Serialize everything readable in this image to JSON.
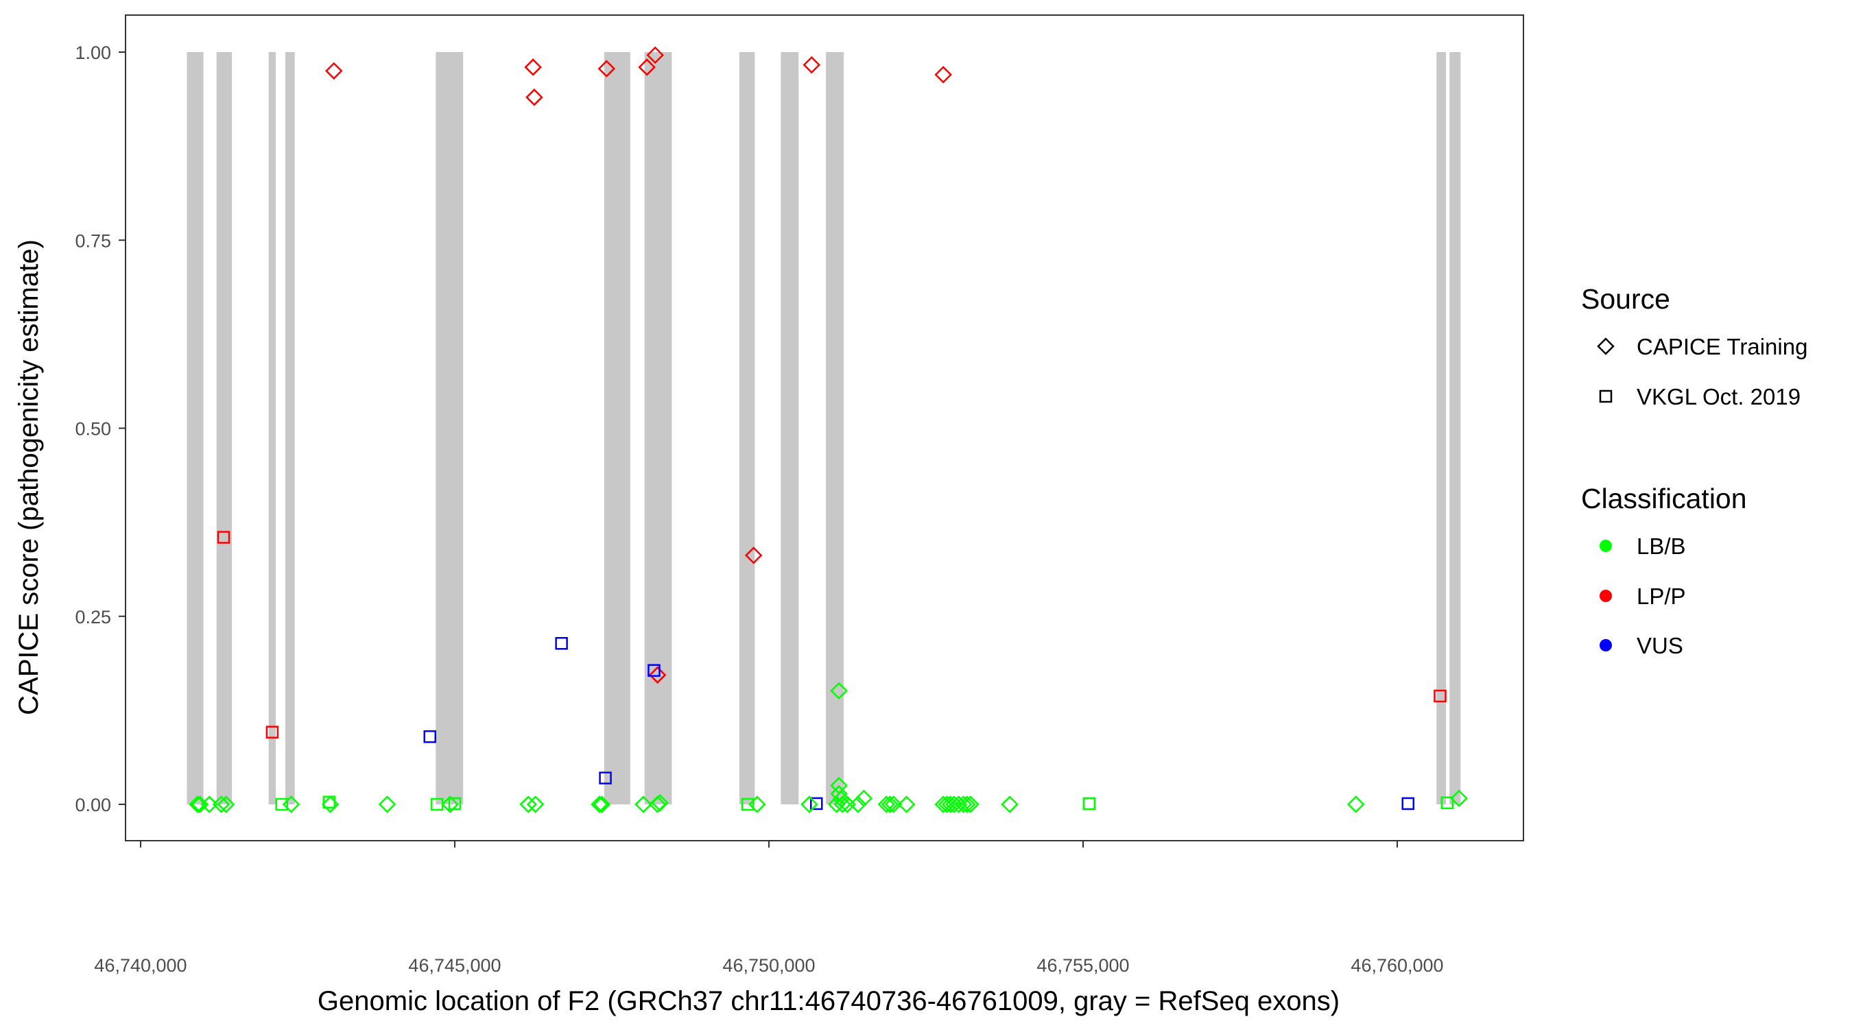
{
  "chart_data": {
    "type": "scatter",
    "xlabel": "Genomic location of F2 (GRCh37 chr11:46740736-46761009, gray = RefSeq exons)",
    "ylabel": "CAPICE score (pathogenicity estimate)",
    "xlim": [
      46739700,
      46762000
    ],
    "ylim": [
      -0.045,
      1.05
    ],
    "x_ticks": [
      46740000,
      46745000,
      46750000,
      46755000,
      46760000
    ],
    "x_tick_labels": [
      "46,740,000",
      "46,745,000",
      "46,750,000",
      "46,755,000",
      "46,760,000"
    ],
    "y_ticks": [
      0,
      0.25,
      0.5,
      0.75,
      1.0
    ],
    "y_tick_labels": [
      "0.00",
      "0.25",
      "0.50",
      "0.75",
      "1.00"
    ],
    "grid": false,
    "legend_placement": "right",
    "exon_color": "#c8c8c8",
    "exons": [
      [
        46740736,
        46741000
      ],
      [
        46741208,
        46741453
      ],
      [
        46742038,
        46742151
      ],
      [
        46742302,
        46742453
      ],
      [
        46744698,
        46745133
      ],
      [
        46747378,
        46747793
      ],
      [
        46748020,
        46748454
      ],
      [
        46749529,
        46749775
      ],
      [
        46750190,
        46750473
      ],
      [
        46750907,
        46751190
      ],
      [
        46760625,
        46760776
      ],
      [
        46760832,
        46761009
      ]
    ],
    "legend": {
      "source": {
        "title": "Source",
        "items": [
          {
            "label": "CAPICE Training",
            "shape": "diamond"
          },
          {
            "label": "VKGL Oct. 2019",
            "shape": "square"
          }
        ]
      },
      "classification": {
        "title": "Classification",
        "items": [
          {
            "label": "LB/B",
            "color": "#00ff00"
          },
          {
            "label": "LP/P",
            "color": "#ff0000"
          },
          {
            "label": "VUS",
            "color": "#0000ff"
          }
        ]
      }
    },
    "series": [
      {
        "source": "CAPICE Training",
        "classification": "LP/P",
        "points": [
          [
            46743076,
            0.975
          ],
          [
            46746246,
            0.98
          ],
          [
            46746265,
            0.94
          ],
          [
            46747416,
            0.978
          ],
          [
            46748058,
            0.98
          ],
          [
            46748190,
            0.996
          ],
          [
            46750680,
            0.983
          ],
          [
            46752775,
            0.97
          ],
          [
            46749756,
            0.331
          ],
          [
            46748227,
            0.172
          ]
        ]
      },
      {
        "source": "VKGL Oct. 2019",
        "classification": "LP/P",
        "points": [
          [
            46741321,
            0.355
          ],
          [
            46742095,
            0.096
          ],
          [
            46760682,
            0.144
          ]
        ]
      },
      {
        "source": "VKGL Oct. 2019",
        "classification": "VUS",
        "points": [
          [
            46744604,
            0.09
          ],
          [
            46746699,
            0.214
          ],
          [
            46748171,
            0.178
          ],
          [
            46747397,
            0.035
          ],
          [
            46750756,
            0.001
          ],
          [
            46760172,
            0.001
          ]
        ]
      },
      {
        "source": "CAPICE Training",
        "classification": "LB/B",
        "points": [
          [
            46740906,
            0
          ],
          [
            46740944,
            0
          ],
          [
            46741094,
            0
          ],
          [
            46741283,
            0
          ],
          [
            46741359,
            0
          ],
          [
            46742396,
            0
          ],
          [
            46743019,
            0
          ],
          [
            46743925,
            0
          ],
          [
            46744925,
            0
          ],
          [
            46746170,
            0
          ],
          [
            46746284,
            0
          ],
          [
            46747303,
            0
          ],
          [
            46747341,
            0
          ],
          [
            46748001,
            0
          ],
          [
            46748227,
            0
          ],
          [
            46748265,
            0.002
          ],
          [
            46749812,
            0
          ],
          [
            46750643,
            0
          ],
          [
            46751077,
            0
          ],
          [
            46751171,
            0
          ],
          [
            46751247,
            0
          ],
          [
            46751417,
            0
          ],
          [
            46751870,
            0
          ],
          [
            46751926,
            0
          ],
          [
            46751982,
            0
          ],
          [
            46752190,
            0
          ],
          [
            46752775,
            0
          ],
          [
            46752832,
            0
          ],
          [
            46752888,
            0
          ],
          [
            46752945,
            0
          ],
          [
            46753020,
            0
          ],
          [
            46753096,
            0
          ],
          [
            46753153,
            0
          ],
          [
            46753209,
            0
          ],
          [
            46753832,
            0
          ],
          [
            46759342,
            0
          ],
          [
            46751114,
            0.151
          ],
          [
            46751114,
            0.025
          ],
          [
            46751114,
            0.014
          ],
          [
            46751150,
            0.007
          ],
          [
            46751511,
            0.008
          ],
          [
            46760984,
            0.008
          ]
        ]
      },
      {
        "source": "VKGL Oct. 2019",
        "classification": "LB/B",
        "points": [
          [
            46742246,
            0
          ],
          [
            46743000,
            0.003
          ],
          [
            46744718,
            0
          ],
          [
            46745000,
            0.001
          ],
          [
            46749661,
            0
          ],
          [
            46755096,
            0.001
          ],
          [
            46760795,
            0.002
          ]
        ]
      }
    ]
  }
}
